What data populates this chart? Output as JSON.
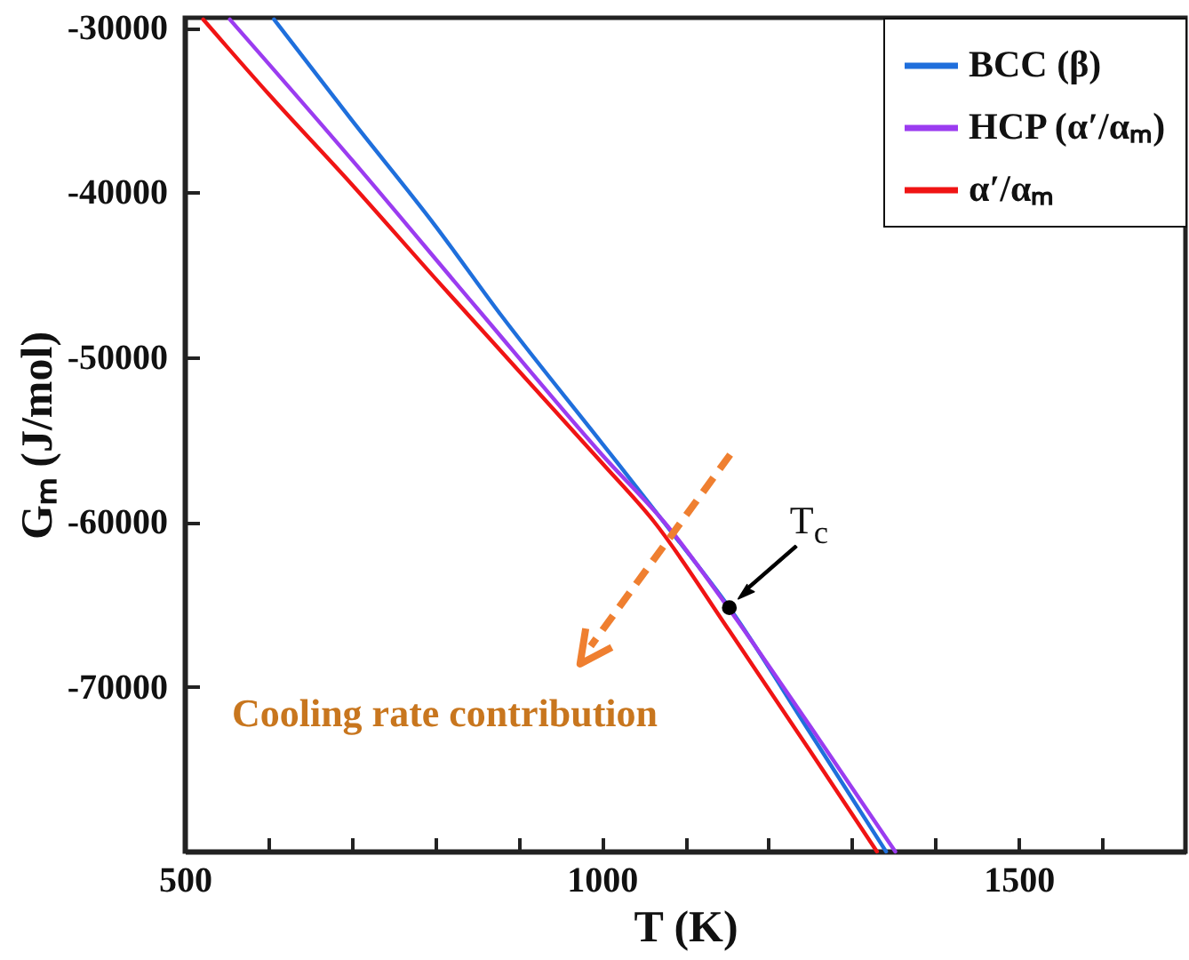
{
  "chart_data": {
    "type": "line",
    "xlabel": "T (K)",
    "ylabel": "Gₘ (J/mol)",
    "xlim": [
      500,
      1700
    ],
    "ylim": [
      -80000,
      -29400
    ],
    "xticks": [
      500,
      {
        "value": 600,
        "label": null
      },
      {
        "value": 700,
        "label": null
      },
      {
        "value": 800,
        "label": null
      },
      {
        "value": 900,
        "label": null
      },
      1000,
      {
        "value": 1100,
        "label": null
      },
      {
        "value": 1200,
        "label": null
      },
      {
        "value": 1300,
        "label": null
      },
      {
        "value": 1400,
        "label": null
      },
      1500,
      {
        "value": 1600,
        "label": null
      }
    ],
    "yticks": [
      -70000,
      -60000,
      -50000,
      -40000,
      -30000
    ],
    "grid": false,
    "legend": "top right",
    "line_style": "solid",
    "marker": "none",
    "series": [
      {
        "name": "BCC (β)",
        "color": "#1f6fdc",
        "x": [
          607,
          700,
          800,
          880,
          1000,
          1079,
          1153,
          1250,
          1341
        ],
        "values": [
          -29500,
          -35600,
          -42000,
          -47500,
          -55200,
          -60300,
          -65200,
          -72800,
          -80000
        ]
      },
      {
        "name": "HCP (α′/αₘ)",
        "color": "#9b3cf0",
        "x": [
          554,
          700,
          850,
          1000,
          1083,
          1153,
          1250,
          1352
        ],
        "values": [
          -29500,
          -38000,
          -47000,
          -55900,
          -60500,
          -65300,
          -72400,
          -80000
        ]
      },
      {
        "name": "α′/αₘ",
        "color": "#f01414",
        "x": [
          522,
          600,
          700,
          800,
          900,
          1000,
          1063,
          1153,
          1250,
          1330
        ],
        "values": [
          -29500,
          -34000,
          -39500,
          -45200,
          -50800,
          -56400,
          -60000,
          -66600,
          -73900,
          -80000
        ]
      }
    ],
    "annotations": [
      {
        "text": "T$_{c}$",
        "x": 1153,
        "y": -65200
      },
      "Cooling rate contribution"
    ]
  }
}
